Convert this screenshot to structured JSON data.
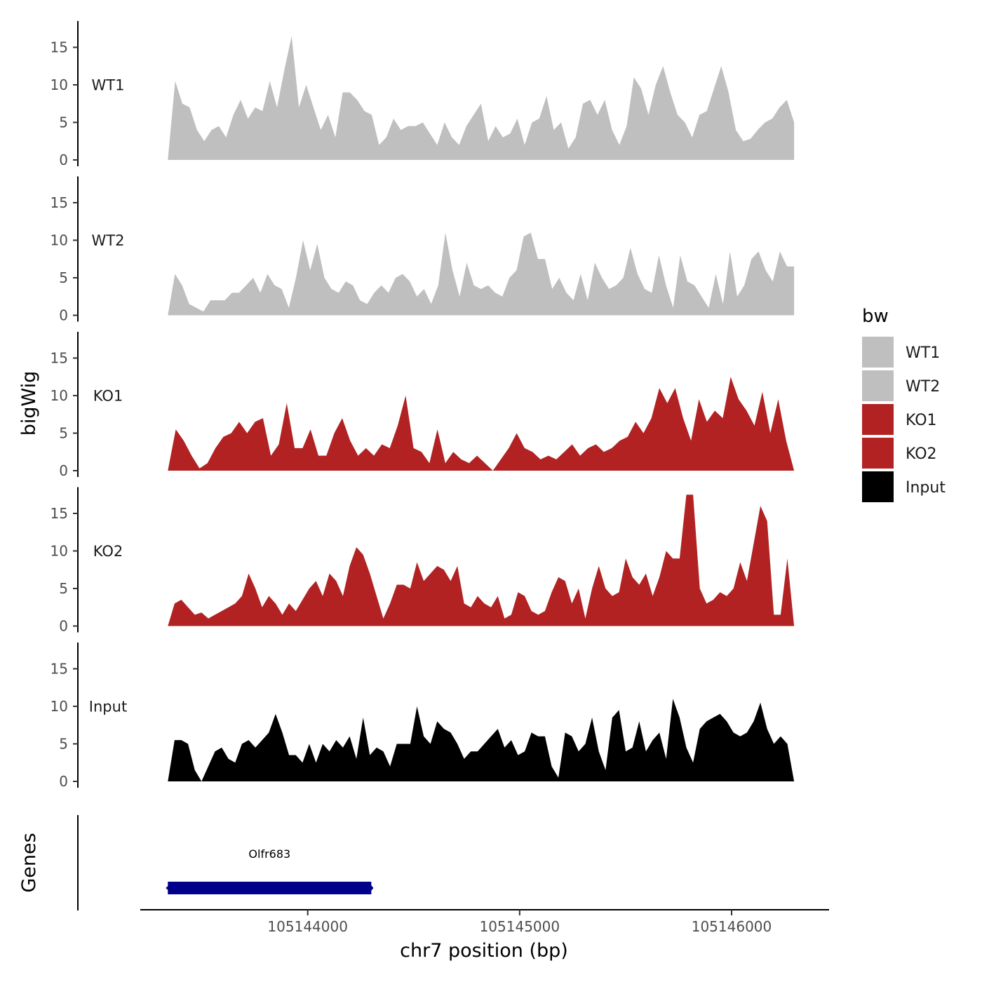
{
  "chart_data": {
    "type": "area",
    "ylabel": "bigWig",
    "xlabel": "chr7 position (bp)",
    "xlim": [
      105143210,
      105146460
    ],
    "ylim": [
      0,
      18.5
    ],
    "y_ticks": [
      0,
      5,
      10,
      15
    ],
    "x_ticks": [
      105144000,
      105145000,
      105146000
    ],
    "x_tick_labels": [
      "105144000",
      "105145000",
      "105146000"
    ],
    "grid": false,
    "legend": {
      "title": "bw",
      "position": "right",
      "entries": [
        {
          "label": "WT1",
          "color": "#bfbfbf"
        },
        {
          "label": "WT2",
          "color": "#bfbfbf"
        },
        {
          "label": "KO1",
          "color": "#b22222"
        },
        {
          "label": "KO2",
          "color": "#b22222"
        },
        {
          "label": "Input",
          "color": "#000000"
        }
      ]
    },
    "x_start": 105143340,
    "x_end": 105146295,
    "series": [
      {
        "name": "WT1",
        "color": "#bfbfbf",
        "values": [
          0,
          10.5,
          7.5,
          7,
          4,
          2.5,
          4,
          4.5,
          3,
          6,
          8,
          5.5,
          7,
          6.5,
          10.5,
          7,
          12,
          16.5,
          7,
          10,
          7,
          4,
          6,
          3,
          9,
          9,
          8,
          6.5,
          6,
          2,
          3,
          5.5,
          4,
          4.5,
          4.5,
          5,
          3.5,
          2,
          5,
          3,
          2,
          4.5,
          6,
          7.5,
          2.5,
          4.5,
          3,
          3.5,
          5.5,
          2,
          5,
          5.5,
          8.5,
          4,
          5,
          1.5,
          3,
          7.5,
          8,
          6,
          8,
          4,
          2,
          4.5,
          11,
          9.5,
          6,
          10,
          12.5,
          9,
          6,
          5,
          3,
          6,
          6.5,
          9.5,
          12.5,
          9,
          4,
          2.5,
          2.8,
          4,
          5,
          5.5,
          7,
          8,
          5
        ]
      },
      {
        "name": "WT2",
        "color": "#bfbfbf",
        "values": [
          0,
          5.5,
          4,
          1.5,
          1,
          0.5,
          2,
          2,
          2,
          3,
          3,
          4,
          5,
          3,
          5.5,
          4,
          3.5,
          1,
          5,
          10,
          6,
          9.5,
          5,
          3.5,
          3,
          4.5,
          4,
          2,
          1.5,
          3,
          4,
          3,
          5,
          5.5,
          4.5,
          2.5,
          3.5,
          1.5,
          4,
          11,
          6,
          2.5,
          7,
          4,
          3.5,
          4,
          3,
          2.5,
          5,
          6,
          10.5,
          11,
          7.5,
          7.5,
          3.5,
          5,
          3,
          2,
          5.5,
          2,
          7,
          5,
          3.5,
          4,
          5,
          9,
          5.5,
          3.5,
          3,
          8,
          4,
          1,
          8,
          4.5,
          4,
          2.5,
          1,
          5.5,
          1.5,
          8.5,
          2.5,
          4,
          7.5,
          8.5,
          6,
          4.5,
          8.5,
          6.5,
          6.5
        ]
      },
      {
        "name": "KO1",
        "color": "#b22222",
        "values": [
          0,
          5.5,
          4,
          2,
          0.3,
          1,
          3,
          4.5,
          5,
          6.5,
          5,
          6.5,
          7,
          2,
          3.5,
          9,
          3,
          3,
          5.5,
          2,
          2,
          5,
          7,
          4,
          2,
          3,
          2,
          3.5,
          3,
          6,
          10,
          3,
          2.5,
          1,
          5.5,
          1,
          2.5,
          1.5,
          1,
          2,
          1,
          0,
          1.5,
          3,
          5,
          3,
          2.5,
          1.5,
          2,
          1.5,
          2.5,
          3.5,
          2,
          3,
          3.5,
          2.5,
          3,
          4,
          4.5,
          6.5,
          5,
          7,
          11,
          9,
          11,
          7,
          4,
          9.5,
          6.5,
          8,
          7,
          12.5,
          9.5,
          8,
          6,
          10.5,
          5,
          9.5,
          4,
          0
        ]
      },
      {
        "name": "KO2",
        "color": "#b22222",
        "values": [
          0,
          3,
          3.5,
          2.5,
          1.5,
          1.8,
          1,
          1.5,
          2,
          2.5,
          3,
          4,
          7,
          5,
          2.5,
          4,
          3,
          1.5,
          3,
          2,
          3.5,
          5,
          6,
          4,
          7,
          6,
          4,
          8,
          10.5,
          9.5,
          7,
          4,
          1,
          3,
          5.5,
          5.5,
          5,
          8.5,
          6,
          7,
          8,
          7.5,
          6,
          8,
          3,
          2.5,
          4,
          3,
          2.5,
          4,
          1,
          1.5,
          4.5,
          4,
          2,
          1.5,
          2,
          4.5,
          6.5,
          6,
          3,
          5,
          1,
          5,
          8,
          5,
          4,
          4.5,
          9,
          6.5,
          5.5,
          7,
          4,
          6.5,
          10,
          9,
          9,
          17.5,
          17.5,
          5,
          3,
          3.5,
          4.5,
          4,
          5,
          8.5,
          6,
          11,
          16,
          14,
          1.5,
          1.5,
          9,
          0
        ]
      },
      {
        "name": "Input",
        "color": "#000000",
        "values": [
          0,
          5.5,
          5.5,
          5,
          1.5,
          0,
          2,
          4,
          4.5,
          3,
          2.5,
          5,
          5.5,
          4.5,
          5.5,
          6.5,
          9,
          6.5,
          3.5,
          3.5,
          2.5,
          5,
          2.5,
          5,
          4,
          5.5,
          4.5,
          6,
          3,
          8.5,
          3.5,
          4.5,
          4,
          2,
          5,
          5,
          5,
          10,
          6,
          5,
          8,
          7,
          6.5,
          5,
          3,
          4,
          4,
          5,
          6,
          7,
          4.5,
          5.5,
          3.5,
          4,
          6.5,
          6,
          6,
          2,
          0.5,
          6.5,
          6,
          4,
          5,
          8.5,
          4,
          1.5,
          8.5,
          9.5,
          4,
          4.5,
          8,
          4,
          5.5,
          6.5,
          3,
          11,
          8.5,
          4.5,
          2.5,
          7,
          8,
          8.5,
          9,
          8,
          6.5,
          6,
          6.5,
          8,
          10.5,
          7,
          5,
          6,
          5,
          0
        ]
      }
    ],
    "genes": [
      {
        "name": "Olfr683",
        "start": 105143340,
        "end": 105144300,
        "strand": "-",
        "color": "#00008b"
      }
    ],
    "gene_track_label": "Genes"
  }
}
